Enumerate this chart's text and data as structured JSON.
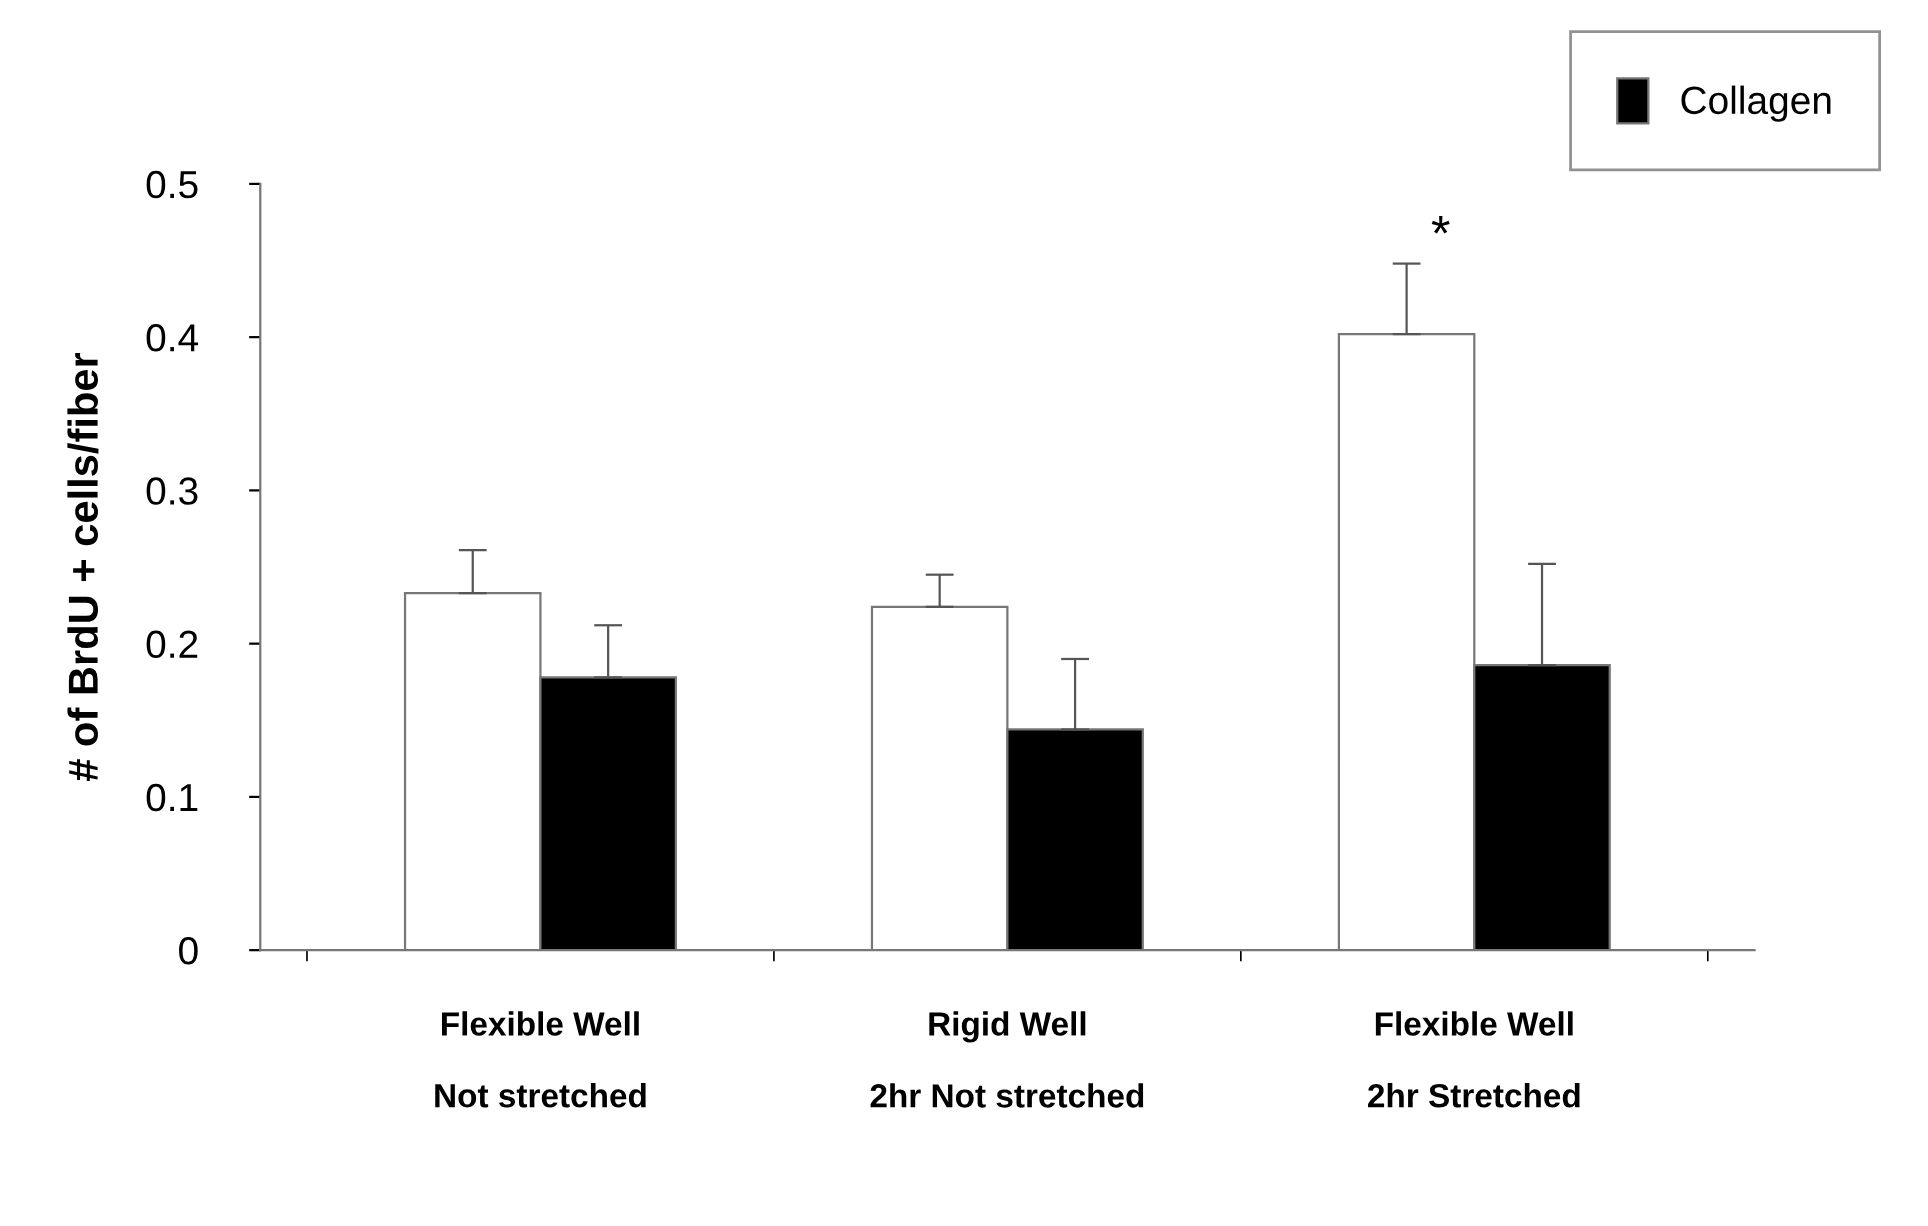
{
  "chart_data": {
    "type": "bar",
    "ylabel": "# of BrdU + cells/fiber",
    "categories": [
      "Flexible Well\n\nNot stretched",
      "Rigid Well\n\n2hr Not stretched",
      "Flexible Well\n\n2hr Stretched"
    ],
    "series": [
      {
        "color": "#ffffff",
        "values": [
          0.233,
          0.224,
          0.402
        ],
        "errors": [
          [
            0.233,
            0.261
          ],
          [
            0.224,
            0.245
          ],
          [
            0.402,
            0.448
          ]
        ]
      },
      {
        "name": "Collagen",
        "color": "#000000",
        "values": [
          0.178,
          0.144,
          0.186
        ],
        "errors": [
          [
            0.178,
            0.212
          ],
          [
            0.144,
            0.19
          ],
          [
            0.186,
            0.252
          ]
        ]
      }
    ],
    "annotations": [
      "*"
    ],
    "ylim": [
      0,
      0.5
    ],
    "yticks": [
      0,
      0.1,
      0.2,
      0.3,
      0.4,
      0.5
    ],
    "grid": false,
    "legend": "top right"
  }
}
